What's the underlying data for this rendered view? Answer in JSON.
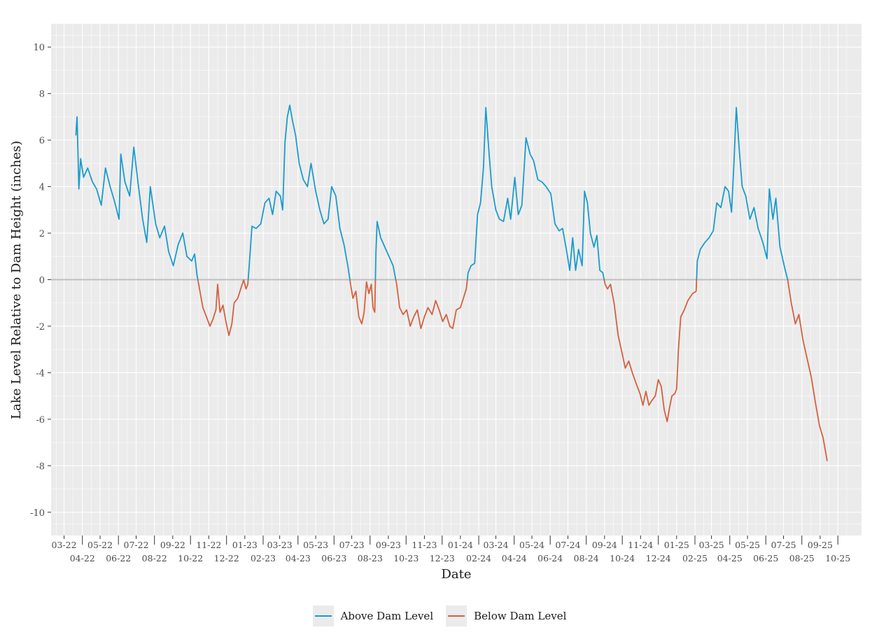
{
  "chart_data": {
    "type": "line",
    "title": "",
    "xlabel": "Date",
    "ylabel": "Lake Level Relative to Dam Height (inches)",
    "ylim": [
      -11,
      11
    ],
    "yticks": [
      -10,
      -8,
      -6,
      -4,
      -2,
      0,
      2,
      4,
      6,
      8,
      10
    ],
    "xlim": [
      "2022-02-07",
      "2025-11-10"
    ],
    "xtick_labels_upper": [
      "03-22",
      "05-22",
      "07-22",
      "09-22",
      "11-22",
      "01-23",
      "03-23",
      "05-23",
      "07-23",
      "09-23",
      "11-23",
      "01-24",
      "03-24",
      "05-24",
      "07-24",
      "09-24",
      "11-24",
      "01-25",
      "03-25",
      "05-25",
      "07-25",
      "09-25"
    ],
    "xtick_labels_lower": [
      "04-22",
      "06-22",
      "08-22",
      "10-22",
      "12-22",
      "02-23",
      "04-23",
      "06-23",
      "08-23",
      "10-23",
      "12-23",
      "02-24",
      "04-24",
      "06-24",
      "08-24",
      "10-24",
      "12-24",
      "02-25",
      "04-25",
      "06-25",
      "08-25",
      "10-25"
    ],
    "reference_line": {
      "y": 0,
      "color": "#bfbfbf"
    },
    "grid": true,
    "legend_position": "bottom",
    "legend": [
      {
        "name": "Above Dam Level",
        "color": "#1a9bcd"
      },
      {
        "name": "Below Dam Level",
        "color": "#d4603f"
      }
    ],
    "series": {
      "name": "Lake level",
      "points": [
        [
          "2022-03-21",
          6.2
        ],
        [
          "2022-03-23",
          7.0
        ],
        [
          "2022-03-26",
          3.9
        ],
        [
          "2022-03-29",
          5.2
        ],
        [
          "2022-04-03",
          4.4
        ],
        [
          "2022-04-10",
          4.8
        ],
        [
          "2022-04-18",
          4.2
        ],
        [
          "2022-04-25",
          3.9
        ],
        [
          "2022-05-03",
          3.2
        ],
        [
          "2022-05-10",
          4.8
        ],
        [
          "2022-05-18",
          4.0
        ],
        [
          "2022-05-25",
          3.4
        ],
        [
          "2022-06-02",
          2.6
        ],
        [
          "2022-06-05",
          5.4
        ],
        [
          "2022-06-12",
          4.2
        ],
        [
          "2022-06-20",
          3.6
        ],
        [
          "2022-06-27",
          5.7
        ],
        [
          "2022-07-04",
          4.2
        ],
        [
          "2022-07-12",
          2.6
        ],
        [
          "2022-07-19",
          1.6
        ],
        [
          "2022-07-25",
          4.0
        ],
        [
          "2022-08-03",
          2.4
        ],
        [
          "2022-08-10",
          1.8
        ],
        [
          "2022-08-18",
          2.3
        ],
        [
          "2022-08-25",
          1.2
        ],
        [
          "2022-09-02",
          0.6
        ],
        [
          "2022-09-10",
          1.5
        ],
        [
          "2022-09-18",
          2.0
        ],
        [
          "2022-09-25",
          1.0
        ],
        [
          "2022-10-03",
          0.8
        ],
        [
          "2022-10-08",
          1.1
        ],
        [
          "2022-10-12",
          0.2
        ],
        [
          "2022-10-17",
          -0.5
        ],
        [
          "2022-10-22",
          -1.2
        ],
        [
          "2022-10-28",
          -1.6
        ],
        [
          "2022-11-03",
          -2.0
        ],
        [
          "2022-11-08",
          -1.7
        ],
        [
          "2022-11-13",
          -1.3
        ],
        [
          "2022-11-16",
          -0.2
        ],
        [
          "2022-11-20",
          -1.4
        ],
        [
          "2022-11-25",
          -1.1
        ],
        [
          "2022-11-30",
          -1.8
        ],
        [
          "2022-12-05",
          -2.4
        ],
        [
          "2022-12-10",
          -1.9
        ],
        [
          "2022-12-14",
          -1.0
        ],
        [
          "2022-12-20",
          -0.8
        ],
        [
          "2022-12-25",
          -0.4
        ],
        [
          "2022-12-30",
          0.0
        ],
        [
          "2023-01-03",
          -0.4
        ],
        [
          "2023-01-06",
          -0.2
        ],
        [
          "2023-01-09",
          0.8
        ],
        [
          "2023-01-13",
          2.3
        ],
        [
          "2023-01-20",
          2.2
        ],
        [
          "2023-01-28",
          2.4
        ],
        [
          "2023-02-04",
          3.3
        ],
        [
          "2023-02-11",
          3.5
        ],
        [
          "2023-02-17",
          2.8
        ],
        [
          "2023-02-23",
          3.8
        ],
        [
          "2023-03-02",
          3.6
        ],
        [
          "2023-03-06",
          3.0
        ],
        [
          "2023-03-10",
          5.9
        ],
        [
          "2023-03-14",
          7.0
        ],
        [
          "2023-03-18",
          7.5
        ],
        [
          "2023-03-23",
          6.8
        ],
        [
          "2023-03-28",
          6.2
        ],
        [
          "2023-04-03",
          5.0
        ],
        [
          "2023-04-10",
          4.3
        ],
        [
          "2023-04-17",
          4.0
        ],
        [
          "2023-04-23",
          5.0
        ],
        [
          "2023-05-01",
          3.8
        ],
        [
          "2023-05-08",
          3.0
        ],
        [
          "2023-05-15",
          2.4
        ],
        [
          "2023-05-22",
          2.6
        ],
        [
          "2023-05-28",
          4.0
        ],
        [
          "2023-06-04",
          3.6
        ],
        [
          "2023-06-11",
          2.2
        ],
        [
          "2023-06-18",
          1.5
        ],
        [
          "2023-06-25",
          0.5
        ],
        [
          "2023-06-29",
          -0.2
        ],
        [
          "2023-07-03",
          -0.8
        ],
        [
          "2023-07-08",
          -0.5
        ],
        [
          "2023-07-13",
          -1.6
        ],
        [
          "2023-07-18",
          -1.9
        ],
        [
          "2023-07-22",
          -1.4
        ],
        [
          "2023-07-26",
          -0.1
        ],
        [
          "2023-07-30",
          -0.6
        ],
        [
          "2023-08-03",
          -0.2
        ],
        [
          "2023-08-06",
          -1.2
        ],
        [
          "2023-08-09",
          -1.4
        ],
        [
          "2023-08-11",
          1.2
        ],
        [
          "2023-08-13",
          2.5
        ],
        [
          "2023-08-19",
          1.8
        ],
        [
          "2023-08-26",
          1.4
        ],
        [
          "2023-09-02",
          1.0
        ],
        [
          "2023-09-09",
          0.6
        ],
        [
          "2023-09-15",
          -0.2
        ],
        [
          "2023-09-20",
          -1.2
        ],
        [
          "2023-09-26",
          -1.5
        ],
        [
          "2023-10-02",
          -1.3
        ],
        [
          "2023-10-08",
          -2.0
        ],
        [
          "2023-10-14",
          -1.6
        ],
        [
          "2023-10-20",
          -1.3
        ],
        [
          "2023-10-26",
          -2.1
        ],
        [
          "2023-11-01",
          -1.6
        ],
        [
          "2023-11-07",
          -1.2
        ],
        [
          "2023-11-14",
          -1.5
        ],
        [
          "2023-11-20",
          -0.9
        ],
        [
          "2023-11-26",
          -1.3
        ],
        [
          "2023-12-02",
          -1.8
        ],
        [
          "2023-12-08",
          -1.5
        ],
        [
          "2023-12-14",
          -2.0
        ],
        [
          "2023-12-19",
          -2.1
        ],
        [
          "2023-12-25",
          -1.3
        ],
        [
          "2024-01-01",
          -1.2
        ],
        [
          "2024-01-06",
          -0.8
        ],
        [
          "2024-01-11",
          -0.4
        ],
        [
          "2024-01-14",
          0.3
        ],
        [
          "2024-01-19",
          0.6
        ],
        [
          "2024-01-25",
          0.7
        ],
        [
          "2024-01-30",
          2.8
        ],
        [
          "2024-02-04",
          3.3
        ],
        [
          "2024-02-09",
          4.8
        ],
        [
          "2024-02-13",
          7.4
        ],
        [
          "2024-02-18",
          5.6
        ],
        [
          "2024-02-23",
          4.0
        ],
        [
          "2024-03-01",
          3.0
        ],
        [
          "2024-03-07",
          2.6
        ],
        [
          "2024-03-14",
          2.5
        ],
        [
          "2024-03-21",
          3.5
        ],
        [
          "2024-03-26",
          2.6
        ],
        [
          "2024-04-02",
          4.4
        ],
        [
          "2024-04-08",
          2.8
        ],
        [
          "2024-04-14",
          3.2
        ],
        [
          "2024-04-21",
          6.1
        ],
        [
          "2024-04-28",
          5.4
        ],
        [
          "2024-05-04",
          5.1
        ],
        [
          "2024-05-11",
          4.3
        ],
        [
          "2024-05-18",
          4.2
        ],
        [
          "2024-05-25",
          4.0
        ],
        [
          "2024-06-02",
          3.7
        ],
        [
          "2024-06-09",
          2.4
        ],
        [
          "2024-06-16",
          2.1
        ],
        [
          "2024-06-22",
          2.2
        ],
        [
          "2024-06-29",
          1.2
        ],
        [
          "2024-07-04",
          0.4
        ],
        [
          "2024-07-09",
          1.8
        ],
        [
          "2024-07-14",
          0.4
        ],
        [
          "2024-07-19",
          1.3
        ],
        [
          "2024-07-25",
          0.6
        ],
        [
          "2024-07-29",
          3.8
        ],
        [
          "2024-08-03",
          3.3
        ],
        [
          "2024-08-08",
          2.0
        ],
        [
          "2024-08-14",
          1.4
        ],
        [
          "2024-08-19",
          1.9
        ],
        [
          "2024-08-24",
          0.4
        ],
        [
          "2024-08-29",
          0.3
        ],
        [
          "2024-09-02",
          -0.2
        ],
        [
          "2024-09-06",
          -0.4
        ],
        [
          "2024-09-11",
          -0.2
        ],
        [
          "2024-09-17",
          -1.0
        ],
        [
          "2024-09-24",
          -2.4
        ],
        [
          "2024-10-01",
          -3.2
        ],
        [
          "2024-10-06",
          -3.8
        ],
        [
          "2024-10-12",
          -3.5
        ],
        [
          "2024-10-18",
          -4.0
        ],
        [
          "2024-10-25",
          -4.5
        ],
        [
          "2024-10-31",
          -4.9
        ],
        [
          "2024-11-05",
          -5.4
        ],
        [
          "2024-11-10",
          -4.8
        ],
        [
          "2024-11-15",
          -5.4
        ],
        [
          "2024-11-20",
          -5.2
        ],
        [
          "2024-11-26",
          -5.0
        ],
        [
          "2024-12-01",
          -4.3
        ],
        [
          "2024-12-06",
          -4.6
        ],
        [
          "2024-12-11",
          -5.6
        ],
        [
          "2024-12-16",
          -6.1
        ],
        [
          "2024-12-20",
          -5.5
        ],
        [
          "2024-12-24",
          -5.0
        ],
        [
          "2024-12-29",
          -4.9
        ],
        [
          "2025-01-01",
          -4.7
        ],
        [
          "2025-01-04",
          -3.0
        ],
        [
          "2025-01-08",
          -1.6
        ],
        [
          "2025-01-14",
          -1.3
        ],
        [
          "2025-01-20",
          -0.9
        ],
        [
          "2025-01-28",
          -0.6
        ],
        [
          "2025-02-03",
          -0.5
        ],
        [
          "2025-02-05",
          0.8
        ],
        [
          "2025-02-10",
          1.3
        ],
        [
          "2025-02-18",
          1.6
        ],
        [
          "2025-02-25",
          1.8
        ],
        [
          "2025-03-04",
          2.1
        ],
        [
          "2025-03-10",
          3.3
        ],
        [
          "2025-03-17",
          3.1
        ],
        [
          "2025-03-24",
          4.0
        ],
        [
          "2025-03-30",
          3.8
        ],
        [
          "2025-04-04",
          2.9
        ],
        [
          "2025-04-08",
          5.0
        ],
        [
          "2025-04-12",
          7.4
        ],
        [
          "2025-04-17",
          5.6
        ],
        [
          "2025-04-22",
          4.0
        ],
        [
          "2025-04-28",
          3.6
        ],
        [
          "2025-05-05",
          2.6
        ],
        [
          "2025-05-12",
          3.1
        ],
        [
          "2025-05-19",
          2.2
        ],
        [
          "2025-05-27",
          1.6
        ],
        [
          "2025-06-03",
          0.9
        ],
        [
          "2025-06-07",
          3.9
        ],
        [
          "2025-06-13",
          2.6
        ],
        [
          "2025-06-18",
          3.5
        ],
        [
          "2025-06-25",
          1.4
        ],
        [
          "2025-07-03",
          0.5
        ],
        [
          "2025-07-08",
          0.0
        ],
        [
          "2025-07-14",
          -1.0
        ],
        [
          "2025-07-21",
          -1.9
        ],
        [
          "2025-07-27",
          -1.5
        ],
        [
          "2025-08-03",
          -2.6
        ],
        [
          "2025-08-10",
          -3.4
        ],
        [
          "2025-08-17",
          -4.2
        ],
        [
          "2025-08-24",
          -5.3
        ],
        [
          "2025-08-31",
          -6.3
        ],
        [
          "2025-09-06",
          -6.8
        ],
        [
          "2025-09-13",
          -7.8
        ]
      ]
    }
  }
}
